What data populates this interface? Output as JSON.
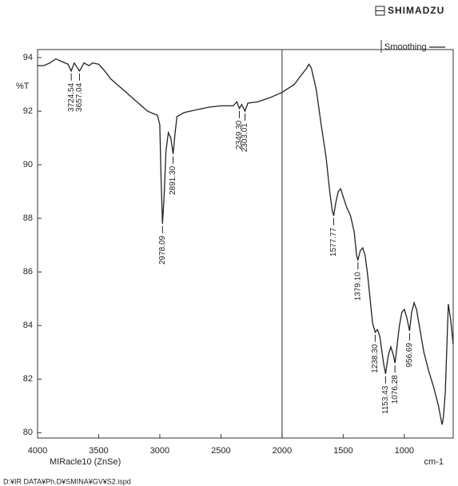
{
  "brand": "SHIMADZU",
  "footer": "D:¥IR DATA¥Ph.D¥SMINA¥GV¥S2.ispd",
  "chart_data": {
    "type": "line",
    "y_label": "%T",
    "x_label": "cm-1",
    "x_sublabel": "MIRacle10 (ZnSe)",
    "xlim": [
      4000,
      600
    ],
    "ylim": [
      79.8,
      94.3
    ],
    "xticks": [
      4000,
      3500,
      3000,
      2500,
      2000,
      1500,
      1000
    ],
    "yticks": [
      80,
      82,
      84,
      86,
      88,
      90,
      92,
      94
    ],
    "divider_x": 2000,
    "legend": "top-right",
    "series": [
      {
        "name": "Smoothing",
        "color": "#222222",
        "x": [
          4000,
          3950,
          3900,
          3850,
          3800,
          3750,
          3724.54,
          3700,
          3657.04,
          3620,
          3580,
          3550,
          3500,
          3450,
          3400,
          3350,
          3300,
          3250,
          3200,
          3150,
          3100,
          3050,
          3020,
          3000,
          2990,
          2978.09,
          2965,
          2950,
          2930,
          2910,
          2891.3,
          2875,
          2860,
          2800,
          2700,
          2600,
          2500,
          2400,
          2370,
          2349.3,
          2330,
          2303.01,
          2280,
          2200,
          2100,
          2000,
          1900,
          1850,
          1800,
          1780,
          1760,
          1720,
          1680,
          1640,
          1610,
          1590,
          1577.77,
          1560,
          1540,
          1520,
          1500,
          1470,
          1440,
          1410,
          1390,
          1379.1,
          1360,
          1340,
          1320,
          1300,
          1280,
          1260,
          1238.3,
          1220,
          1200,
          1170,
          1153.43,
          1130,
          1110,
          1090,
          1076.28,
          1060,
          1040,
          1020,
          1000,
          980,
          956.69,
          940,
          920,
          900,
          870,
          840,
          800,
          760,
          720,
          700,
          690,
          680,
          665,
          650,
          640,
          620,
          600
        ],
        "values": [
          93.7,
          93.7,
          93.8,
          93.95,
          93.85,
          93.75,
          93.5,
          93.8,
          93.5,
          93.8,
          93.7,
          93.8,
          93.75,
          93.5,
          93.2,
          93.0,
          92.8,
          92.6,
          92.4,
          92.2,
          92.0,
          91.9,
          91.85,
          91.5,
          89.5,
          87.8,
          88.8,
          90.5,
          91.2,
          91.0,
          90.4,
          91.2,
          91.8,
          91.95,
          92.05,
          92.15,
          92.2,
          92.2,
          92.35,
          92.1,
          92.25,
          92.0,
          92.3,
          92.35,
          92.5,
          92.7,
          93.0,
          93.3,
          93.6,
          93.75,
          93.6,
          92.8,
          91.5,
          90.3,
          89.0,
          88.3,
          88.1,
          88.6,
          89.0,
          89.1,
          88.8,
          88.4,
          88.1,
          87.5,
          86.6,
          86.45,
          86.8,
          86.9,
          86.6,
          85.9,
          85.0,
          84.1,
          83.75,
          83.85,
          83.6,
          82.6,
          82.2,
          82.9,
          83.2,
          82.9,
          82.6,
          83.2,
          84.0,
          84.5,
          84.6,
          84.3,
          83.8,
          84.5,
          84.85,
          84.6,
          83.8,
          83.0,
          82.3,
          81.7,
          81.0,
          80.5,
          80.3,
          80.6,
          81.5,
          83.5,
          84.8,
          84.2,
          83.3
        ]
      }
    ],
    "peaks": [
      {
        "x": 3724.54,
        "label": "3724.54"
      },
      {
        "x": 3657.04,
        "label": "3657.04"
      },
      {
        "x": 2978.09,
        "label": "2978.09"
      },
      {
        "x": 2891.3,
        "label": "2891.30"
      },
      {
        "x": 2349.3,
        "label": "2349.30"
      },
      {
        "x": 2303.01,
        "label": "2303.01"
      },
      {
        "x": 1577.77,
        "label": "1577.77"
      },
      {
        "x": 1379.1,
        "label": "1379.10"
      },
      {
        "x": 1238.3,
        "label": "1238.30"
      },
      {
        "x": 1153.43,
        "label": "1153.43"
      },
      {
        "x": 1076.28,
        "label": "1076.28"
      },
      {
        "x": 956.69,
        "label": "956.69"
      }
    ]
  }
}
